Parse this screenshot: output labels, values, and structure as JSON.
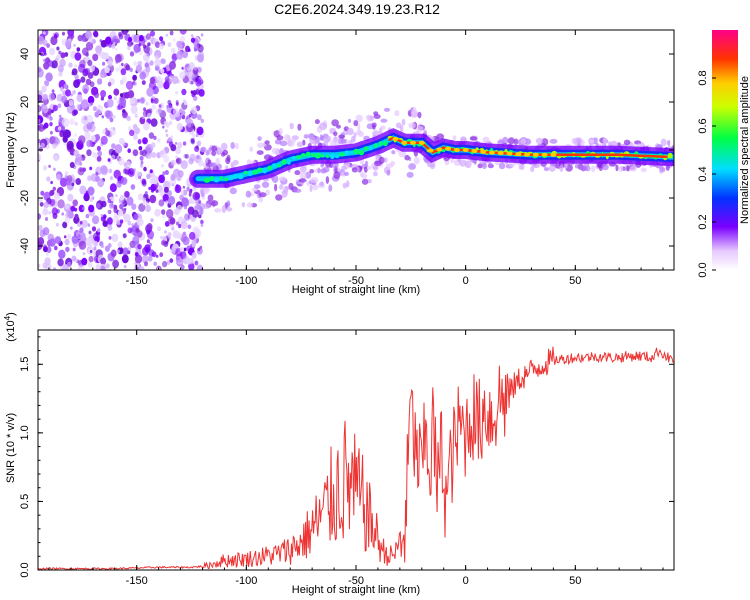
{
  "title": "C2E6.2024.349.19.23.R12",
  "chart_data": [
    {
      "type": "heatmap",
      "xlabel": "Height of straight line (km)",
      "ylabel": "Frequency (Hz)",
      "xlim": [
        -195,
        95
      ],
      "ylim": [
        -50,
        50
      ],
      "x_ticks": [
        -150,
        -100,
        -50,
        0,
        50
      ],
      "y_ticks": [
        -40,
        -20,
        0,
        20,
        40
      ],
      "colorbar": {
        "label": "Normalized spectral amplitude",
        "range": [
          0,
          1
        ],
        "ticks": [
          0.0,
          0.2,
          0.4,
          0.6,
          0.8
        ]
      },
      "noise_region": {
        "x": [
          -195,
          -120
        ],
        "y": [
          -50,
          50
        ]
      },
      "ridge": [
        {
          "x": -120,
          "y": -12
        },
        {
          "x": -110,
          "y": -12
        },
        {
          "x": -100,
          "y": -10
        },
        {
          "x": -90,
          "y": -8
        },
        {
          "x": -80,
          "y": -4
        },
        {
          "x": -70,
          "y": -2
        },
        {
          "x": -60,
          "y": -2
        },
        {
          "x": -50,
          "y": -1
        },
        {
          "x": -40,
          "y": 2
        },
        {
          "x": -33,
          "y": 5
        },
        {
          "x": -28,
          "y": 3
        },
        {
          "x": -20,
          "y": 3
        },
        {
          "x": -15,
          "y": -1
        },
        {
          "x": -10,
          "y": 1
        },
        {
          "x": -5,
          "y": 0
        },
        {
          "x": 0,
          "y": 0
        },
        {
          "x": 10,
          "y": -1
        },
        {
          "x": 30,
          "y": -2
        },
        {
          "x": 50,
          "y": -2
        },
        {
          "x": 70,
          "y": -2
        },
        {
          "x": 95,
          "y": -3
        }
      ]
    },
    {
      "type": "line",
      "xlabel": "Height of straight line (km)",
      "ylabel": "SNR (10 * v/v)",
      "y_multiplier": "(x10^4)",
      "xlim": [
        -195,
        95
      ],
      "ylim": [
        0,
        1.75
      ],
      "x_ticks": [
        -150,
        -100,
        -50,
        0,
        50
      ],
      "y_ticks": [
        0.0,
        0.5,
        1.0,
        1.5
      ],
      "line_color": "#ee3333",
      "series": [
        {
          "x": [
            -195,
            -180,
            -160,
            -140,
            -125,
            -118,
            -110,
            -100,
            -92,
            -85,
            -80,
            -75,
            -70,
            -65,
            -62,
            -58,
            -55,
            -52,
            -49,
            -46,
            -42,
            -38,
            -35,
            -32,
            -30,
            -28,
            -27,
            -26,
            -25,
            -24,
            -22,
            -20,
            -18,
            -16,
            -15,
            -13,
            -11,
            -9,
            -7,
            -5,
            -3,
            0,
            3,
            6,
            9,
            12,
            15,
            18,
            20,
            25,
            30,
            35,
            40,
            45,
            50,
            55,
            60,
            65,
            70,
            75,
            80,
            85,
            88,
            90,
            92,
            95
          ],
          "values": [
            0.01,
            0.01,
            0.01,
            0.02,
            0.02,
            0.03,
            0.07,
            0.08,
            0.1,
            0.12,
            0.15,
            0.2,
            0.3,
            0.4,
            0.5,
            0.6,
            0.65,
            0.6,
            0.55,
            0.45,
            0.3,
            0.15,
            0.1,
            0.12,
            0.2,
            0.25,
            0.5,
            0.9,
            1.2,
            1.0,
            0.8,
            0.75,
            1.0,
            0.7,
            1.1,
            0.6,
            0.9,
            0.5,
            0.75,
            0.9,
            1.05,
            1.0,
            1.15,
            1.05,
            1.2,
            1.1,
            1.25,
            1.25,
            1.3,
            1.4,
            1.45,
            1.5,
            1.53,
            1.54,
            1.55,
            1.55,
            1.56,
            1.55,
            1.55,
            1.56,
            1.56,
            1.55,
            1.6,
            1.58,
            1.55,
            1.53
          ]
        }
      ]
    }
  ]
}
